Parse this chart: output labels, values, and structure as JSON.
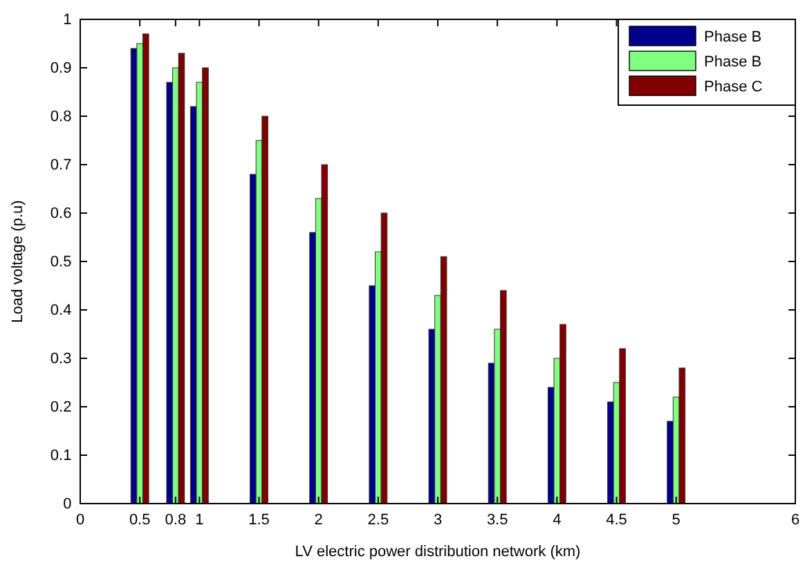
{
  "chart_data": {
    "type": "bar",
    "xlabel": "LV electric power distribution network (km)",
    "ylabel": "Load voltage (p.u)",
    "x": [
      0.5,
      0.8,
      1,
      1.5,
      2,
      2.5,
      3,
      3.5,
      4,
      4.5,
      5
    ],
    "series": [
      {
        "name": "Phase B",
        "color": "#00008b",
        "values": [
          0.94,
          0.87,
          0.82,
          0.68,
          0.56,
          0.45,
          0.36,
          0.29,
          0.24,
          0.21,
          0.17
        ]
      },
      {
        "name": "Phase B",
        "color": "#80ff80",
        "values": [
          0.95,
          0.9,
          0.87,
          0.75,
          0.63,
          0.52,
          0.43,
          0.36,
          0.3,
          0.25,
          0.22
        ]
      },
      {
        "name": "Phase C",
        "color": "#800000",
        "values": [
          0.97,
          0.93,
          0.9,
          0.8,
          0.7,
          0.6,
          0.51,
          0.44,
          0.37,
          0.32,
          0.28
        ]
      }
    ],
    "xlim": [
      0,
      6
    ],
    "xticks": [
      0,
      0.5,
      0.8,
      1,
      1.5,
      2,
      2.5,
      3,
      3.5,
      4,
      4.5,
      5,
      6
    ],
    "ylim": [
      0,
      1
    ],
    "yticks": [
      0,
      0.1,
      0.2,
      0.3,
      0.4,
      0.5,
      0.6,
      0.7,
      0.8,
      0.9,
      1
    ],
    "grid": false,
    "legend": "top right"
  }
}
